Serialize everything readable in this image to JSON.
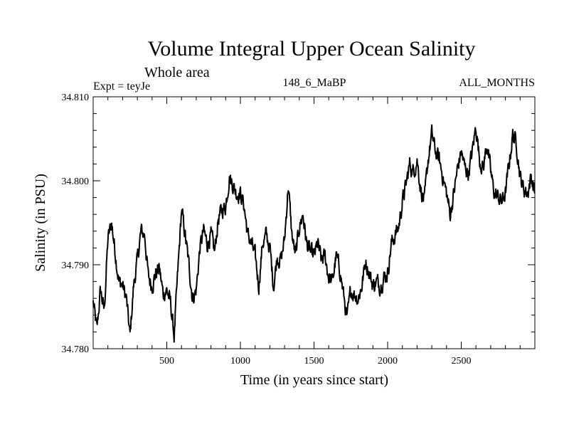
{
  "chart_data": {
    "type": "line",
    "title": "Volume Integral Upper Ocean Salinity",
    "subtitle": "Whole area",
    "experiment_label": "Expt = teyJe",
    "run_label": "148_6_MaBP",
    "months_label": "ALL_MONTHS",
    "xlabel": "Time (in years since start)",
    "ylabel": "Salinity (in PSU)",
    "xlim": [
      0,
      3000
    ],
    "ylim": [
      34.78,
      34.81
    ],
    "x_ticks": [
      500,
      1000,
      1500,
      2000,
      2500
    ],
    "x_tick_labels": [
      "500",
      "1000",
      "1500",
      "2000",
      "2500"
    ],
    "y_ticks": [
      34.78,
      34.79,
      34.8,
      34.81
    ],
    "y_tick_labels": [
      "34.780",
      "34.790",
      "34.800",
      "34.810"
    ],
    "x_minor_step": 100,
    "y_minor_step": 0.002,
    "series": [
      {
        "name": "Salinity",
        "color": "#000000",
        "anchors": [
          [
            0,
            34.7855
          ],
          [
            25,
            34.7822
          ],
          [
            50,
            34.787
          ],
          [
            75,
            34.7845
          ],
          [
            100,
            34.793
          ],
          [
            125,
            34.795
          ],
          [
            150,
            34.7915
          ],
          [
            175,
            34.788
          ],
          [
            200,
            34.7875
          ],
          [
            225,
            34.786
          ],
          [
            250,
            34.7815
          ],
          [
            275,
            34.7875
          ],
          [
            300,
            34.7905
          ],
          [
            325,
            34.794
          ],
          [
            350,
            34.7935
          ],
          [
            375,
            34.7885
          ],
          [
            400,
            34.7875
          ],
          [
            425,
            34.789
          ],
          [
            450,
            34.7895
          ],
          [
            475,
            34.7865
          ],
          [
            500,
            34.787
          ],
          [
            525,
            34.7855
          ],
          [
            550,
            34.7815
          ],
          [
            575,
            34.789
          ],
          [
            600,
            34.7965
          ],
          [
            625,
            34.7935
          ],
          [
            650,
            34.79
          ],
          [
            675,
            34.786
          ],
          [
            700,
            34.787
          ],
          [
            725,
            34.792
          ],
          [
            750,
            34.794
          ],
          [
            775,
            34.7925
          ],
          [
            800,
            34.7935
          ],
          [
            825,
            34.7915
          ],
          [
            850,
            34.7955
          ],
          [
            875,
            34.7965
          ],
          [
            900,
            34.797
          ],
          [
            925,
            34.8005
          ],
          [
            950,
            34.7995
          ],
          [
            975,
            34.7985
          ],
          [
            1000,
            34.7985
          ],
          [
            1025,
            34.797
          ],
          [
            1050,
            34.7935
          ],
          [
            1075,
            34.7925
          ],
          [
            1100,
            34.791
          ],
          [
            1125,
            34.7875
          ],
          [
            1150,
            34.7925
          ],
          [
            1175,
            34.7935
          ],
          [
            1200,
            34.792
          ],
          [
            1225,
            34.7875
          ],
          [
            1250,
            34.791
          ],
          [
            1275,
            34.7905
          ],
          [
            1300,
            34.793
          ],
          [
            1325,
            34.7995
          ],
          [
            1350,
            34.7935
          ],
          [
            1375,
            34.791
          ],
          [
            1400,
            34.7945
          ],
          [
            1425,
            34.796
          ],
          [
            1450,
            34.7925
          ],
          [
            1475,
            34.7915
          ],
          [
            1500,
            34.791
          ],
          [
            1525,
            34.7925
          ],
          [
            1550,
            34.7905
          ],
          [
            1575,
            34.791
          ],
          [
            1600,
            34.7885
          ],
          [
            1625,
            34.788
          ],
          [
            1650,
            34.791
          ],
          [
            1675,
            34.7895
          ],
          [
            1700,
            34.7865
          ],
          [
            1725,
            34.7835
          ],
          [
            1750,
            34.787
          ],
          [
            1775,
            34.7865
          ],
          [
            1800,
            34.786
          ],
          [
            1825,
            34.7875
          ],
          [
            1850,
            34.7905
          ],
          [
            1875,
            34.789
          ],
          [
            1900,
            34.7875
          ],
          [
            1925,
            34.788
          ],
          [
            1950,
            34.7875
          ],
          [
            1975,
            34.7885
          ],
          [
            2000,
            34.789
          ],
          [
            2025,
            34.7925
          ],
          [
            2050,
            34.7935
          ],
          [
            2075,
            34.7945
          ],
          [
            2100,
            34.7975
          ],
          [
            2125,
            34.7995
          ],
          [
            2150,
            34.802
          ],
          [
            2175,
            34.801
          ],
          [
            2200,
            34.8025
          ],
          [
            2225,
            34.799
          ],
          [
            2250,
            34.7975
          ],
          [
            2275,
            34.8025
          ],
          [
            2300,
            34.8055
          ],
          [
            2325,
            34.8035
          ],
          [
            2350,
            34.8025
          ],
          [
            2375,
            34.8005
          ],
          [
            2400,
            34.7985
          ],
          [
            2425,
            34.796
          ],
          [
            2450,
            34.7985
          ],
          [
            2475,
            34.8015
          ],
          [
            2500,
            34.8035
          ],
          [
            2525,
            34.8015
          ],
          [
            2550,
            34.801
          ],
          [
            2575,
            34.8035
          ],
          [
            2600,
            34.8065
          ],
          [
            2625,
            34.8025
          ],
          [
            2650,
            34.8015
          ],
          [
            2675,
            34.8045
          ],
          [
            2700,
            34.801
          ],
          [
            2725,
            34.7985
          ],
          [
            2750,
            34.798
          ],
          [
            2775,
            34.7975
          ],
          [
            2800,
            34.7985
          ],
          [
            2825,
            34.802
          ],
          [
            2850,
            34.8055
          ],
          [
            2875,
            34.8045
          ],
          [
            2900,
            34.8005
          ],
          [
            2925,
            34.799
          ],
          [
            2950,
            34.7985
          ],
          [
            2975,
            34.8005
          ],
          [
            3000,
            34.7985
          ]
        ]
      }
    ]
  }
}
